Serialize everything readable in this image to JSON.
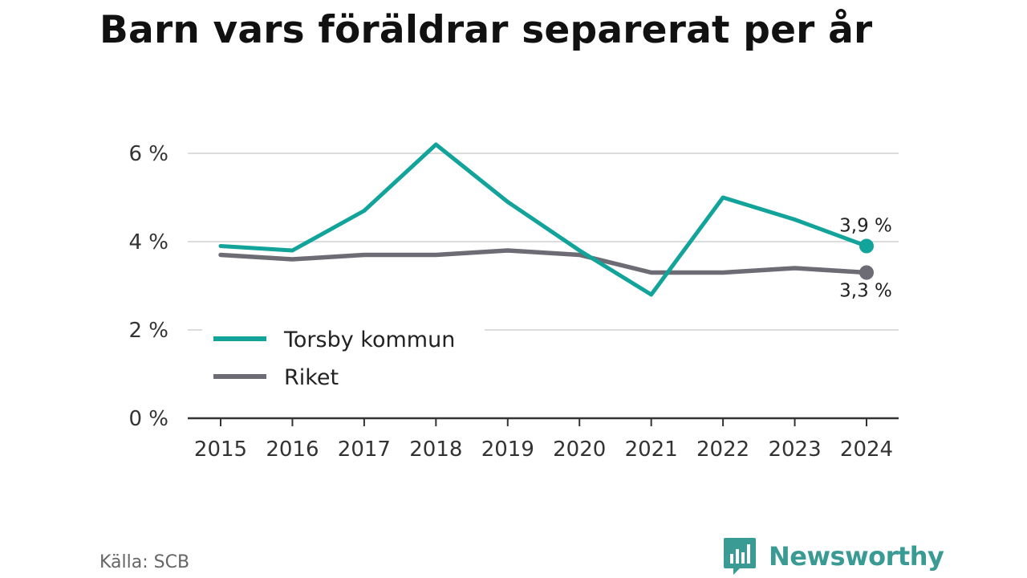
{
  "title": "Barn vars föräldrar separerat per år",
  "source": "Källa: SCB",
  "brand": {
    "name": "Newsworthy",
    "icon": "newsworthy-logo-icon",
    "color": "#3a9a94"
  },
  "chart_data": {
    "type": "line",
    "title": "Barn vars föräldrar separerat per år",
    "xlabel": "",
    "ylabel": "",
    "categories": [
      "2015",
      "2016",
      "2017",
      "2018",
      "2019",
      "2020",
      "2021",
      "2022",
      "2023",
      "2024"
    ],
    "series": [
      {
        "name": "Torsby kommun",
        "color": "#12a39a",
        "values": [
          3.9,
          3.8,
          4.7,
          6.2,
          4.9,
          3.8,
          2.8,
          5.0,
          4.5,
          3.9
        ],
        "end_label": "3,9 %"
      },
      {
        "name": "Riket",
        "color": "#6d6c74",
        "values": [
          3.7,
          3.6,
          3.7,
          3.7,
          3.8,
          3.7,
          3.3,
          3.3,
          3.4,
          3.3
        ],
        "end_label": "3,3 %"
      }
    ],
    "ylim": [
      0,
      6.5
    ],
    "yticks": [
      0,
      2,
      4,
      6
    ],
    "ytick_labels": [
      "0 %",
      "2 %",
      "4 %",
      "6 %"
    ],
    "grid": true,
    "legend": "bottom-left"
  }
}
